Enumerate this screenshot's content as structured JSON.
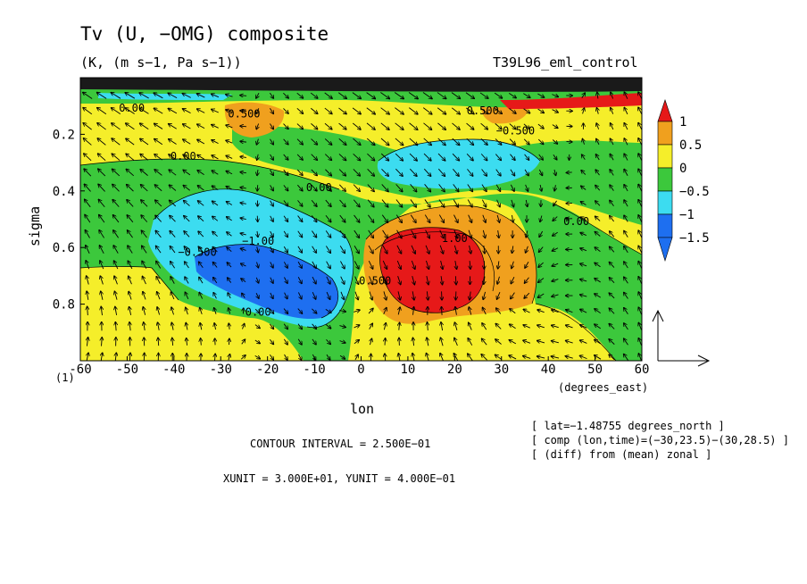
{
  "title": "Tv (U, −OMG) composite",
  "subtitle": "(K, (m s−1, Pa s−1))",
  "run_label": "T39L96_eml_control",
  "y_axis_marker": "(1)",
  "info_lines": [
    "[ lat=−1.48755 degrees_north ]",
    "[ comp (lon,time)=(−30,23.5)−(30,28.5) ]",
    "[ (diff) from (mean) zonal ]"
  ],
  "contour_interval_text": "CONTOUR INTERVAL = 2.500E−01",
  "unit_text": "XUNIT = 3.000E+01, YUNIT = 4.000E−01",
  "colors": {
    "deep_blue": "#1e6ff0",
    "cyan": "#3cdcf0",
    "green": "#3cc83c",
    "yellow": "#f5ee2a",
    "orange": "#f0a01e",
    "red": "#e61919"
  },
  "chart_data": {
    "type": "heatmap",
    "xlabel": "lon",
    "xunit_label": "(degrees_east)",
    "ylabel": "sigma",
    "xlim": [
      -60,
      60
    ],
    "ylim": [
      1.0,
      0.0
    ],
    "x_ticks": [
      -60,
      -50,
      -40,
      -30,
      -20,
      -10,
      0,
      10,
      20,
      30,
      40,
      50,
      60
    ],
    "y_ticks": [
      0.2,
      0.4,
      0.6,
      0.8
    ],
    "colorbar_labels": [
      "1",
      "0.5",
      "0",
      "−0.5",
      "−1",
      "−1.5"
    ],
    "contour_labels": [
      {
        "text": "−0.500",
        "x": -35,
        "y": 0.63
      },
      {
        "text": "−1.00",
        "x": -22,
        "y": 0.59
      },
      {
        "text": "0.00",
        "x": -38,
        "y": 0.29
      },
      {
        "text": "0.00",
        "x": -9,
        "y": 0.4
      },
      {
        "text": "0.00",
        "x": -22,
        "y": 0.84
      },
      {
        "text": "0.500",
        "x": -25,
        "y": 0.14
      },
      {
        "text": "−0.500",
        "x": 33,
        "y": 0.2
      },
      {
        "text": "0.500",
        "x": 26,
        "y": 0.13
      },
      {
        "text": "1.00",
        "x": 20,
        "y": 0.58
      },
      {
        "text": "0.500",
        "x": 3,
        "y": 0.73
      },
      {
        "text": "0.00",
        "x": 46,
        "y": 0.52
      },
      {
        "text": "0.00",
        "x": -49,
        "y": 0.12
      }
    ],
    "reference_vector": {
      "u": 30,
      "omega": 0.4
    }
  }
}
